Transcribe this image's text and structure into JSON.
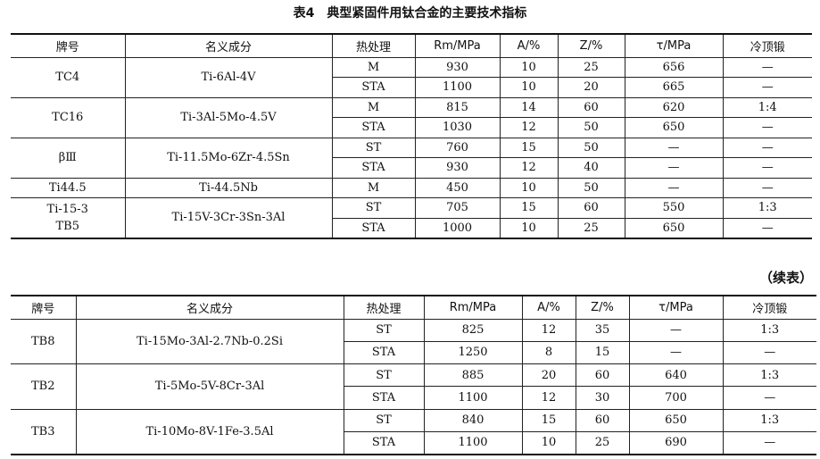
{
  "title": "表4　典型紧固件用钛合金的主要技术指标",
  "continued_label": "（续表）",
  "tables": [
    {
      "headers": [
        "牌号",
        "名义成分",
        "热处理",
        "Rm/MPa",
        "A/%",
        "Z/%",
        "τ/MPa",
        "冷顶锻"
      ],
      "groups": [
        {
          "grade": [
            "TC4"
          ],
          "composition": "Ti-6Al-4V",
          "rows": [
            [
              "M",
              930,
              10,
              25,
              656,
              "—"
            ],
            [
              "STA",
              1100,
              10,
              20,
              665,
              "—"
            ]
          ]
        },
        {
          "grade": [
            "TC16"
          ],
          "composition": "Ti-3Al-5Mo-4.5V",
          "rows": [
            [
              "M",
              815,
              14,
              60,
              620,
              "1:4"
            ],
            [
              "STA",
              1030,
              12,
              50,
              650,
              "—"
            ]
          ]
        },
        {
          "grade": [
            "βⅢ"
          ],
          "composition": "Ti-11.5Mo-6Zr-4.5Sn",
          "rows": [
            [
              "ST",
              760,
              15,
              50,
              "—",
              "—"
            ],
            [
              "STA",
              930,
              12,
              40,
              "—",
              "—"
            ]
          ]
        },
        {
          "grade": [
            "Ti44.5"
          ],
          "composition": "Ti-44.5Nb",
          "rows": [
            [
              "M",
              450,
              10,
              50,
              "—",
              "—"
            ]
          ]
        },
        {
          "grade": [
            "Ti-15-3",
            "TB5"
          ],
          "composition": "Ti-15V-3Cr-3Sn-3Al",
          "rows": [
            [
              "ST",
              705,
              15,
              60,
              550,
              "1:3"
            ],
            [
              "STA",
              1000,
              10,
              25,
              650,
              "—"
            ]
          ]
        }
      ]
    },
    {
      "headers": [
        "牌号",
        "名义成分",
        "热处理",
        "Rm/MPa",
        "A/%",
        "Z/%",
        "τ/MPa",
        "冷顶锻"
      ],
      "groups": [
        {
          "grade": [
            "TB8"
          ],
          "composition": "Ti-15Mo-3Al-2.7Nb-0.2Si",
          "rows": [
            [
              "ST",
              825,
              12,
              35,
              "—",
              "1:3"
            ],
            [
              "STA",
              1250,
              8,
              15,
              "—",
              "—"
            ]
          ]
        },
        {
          "grade": [
            "TB2"
          ],
          "composition": "Ti-5Mo-5V-8Cr-3Al",
          "rows": [
            [
              "ST",
              885,
              20,
              60,
              640,
              "1:3"
            ],
            [
              "STA",
              1100,
              12,
              30,
              700,
              "—"
            ]
          ]
        },
        {
          "grade": [
            "TB3"
          ],
          "composition": "Ti-10Mo-8V-1Fe-3.5Al",
          "rows": [
            [
              "ST",
              840,
              15,
              60,
              650,
              "1:3"
            ],
            [
              "STA",
              1100,
              10,
              25,
              690,
              "—"
            ]
          ]
        }
      ]
    }
  ]
}
